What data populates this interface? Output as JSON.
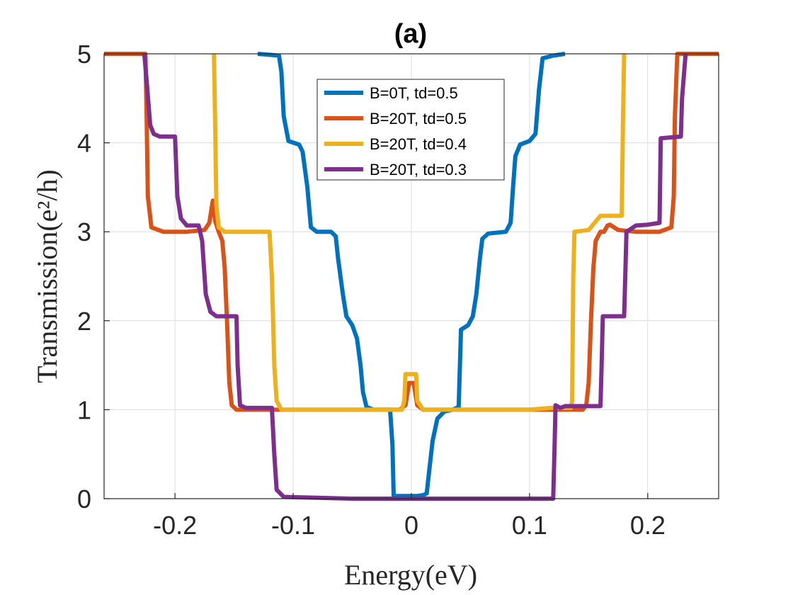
{
  "chart_data": {
    "type": "line",
    "title": "(a)",
    "xlabel": "Energy(eV)",
    "ylabel": "Transmission(e²/h)",
    "xlim": [
      -0.26,
      0.26
    ],
    "ylim": [
      0,
      5
    ],
    "xticks": [
      -0.2,
      -0.1,
      0,
      0.1,
      0.2
    ],
    "xtick_labels": [
      "-0.2",
      "-0.1",
      "0",
      "0.1",
      "0.2"
    ],
    "yticks": [
      0,
      1,
      2,
      3,
      4,
      5
    ],
    "ytick_labels": [
      "0",
      "1",
      "2",
      "3",
      "4",
      "5"
    ],
    "grid": true,
    "legend_position": "top-center",
    "series": [
      {
        "name": "B=0T, td=0.5",
        "color": "#0072BD",
        "points": [
          [
            -0.13,
            5.0
          ],
          [
            -0.112,
            4.98
          ],
          [
            -0.11,
            4.8
          ],
          [
            -0.108,
            4.3
          ],
          [
            -0.104,
            4.02
          ],
          [
            -0.095,
            3.98
          ],
          [
            -0.092,
            3.9
          ],
          [
            -0.088,
            3.5
          ],
          [
            -0.085,
            3.05
          ],
          [
            -0.08,
            3.0
          ],
          [
            -0.068,
            3.0
          ],
          [
            -0.064,
            2.95
          ],
          [
            -0.062,
            2.7
          ],
          [
            -0.058,
            2.3
          ],
          [
            -0.055,
            2.05
          ],
          [
            -0.05,
            1.95
          ],
          [
            -0.046,
            1.8
          ],
          [
            -0.043,
            1.5
          ],
          [
            -0.041,
            1.2
          ],
          [
            -0.038,
            1.03
          ],
          [
            -0.032,
            1.0
          ],
          [
            -0.018,
            1.0
          ],
          [
            -0.016,
            0.6
          ],
          [
            -0.015,
            0.03
          ],
          [
            -0.005,
            0.03
          ],
          [
            0.0,
            0.03
          ],
          [
            0.005,
            0.03
          ],
          [
            0.01,
            0.04
          ],
          [
            0.013,
            0.06
          ],
          [
            0.015,
            0.3
          ],
          [
            0.018,
            0.65
          ],
          [
            0.022,
            0.9
          ],
          [
            0.028,
            0.98
          ],
          [
            0.035,
            1.0
          ],
          [
            0.04,
            1.03
          ],
          [
            0.042,
            1.9
          ],
          [
            0.048,
            1.95
          ],
          [
            0.052,
            2.05
          ],
          [
            0.055,
            2.3
          ],
          [
            0.058,
            2.7
          ],
          [
            0.06,
            2.92
          ],
          [
            0.065,
            2.98
          ],
          [
            0.08,
            3.0
          ],
          [
            0.084,
            3.1
          ],
          [
            0.086,
            3.5
          ],
          [
            0.088,
            3.85
          ],
          [
            0.092,
            3.98
          ],
          [
            0.1,
            4.02
          ],
          [
            0.105,
            4.1
          ],
          [
            0.108,
            4.6
          ],
          [
            0.111,
            4.95
          ],
          [
            0.12,
            4.98
          ],
          [
            0.13,
            5.0
          ]
        ]
      },
      {
        "name": "B=20T, td=0.5",
        "color": "#D95319",
        "points": [
          [
            -0.26,
            5.0
          ],
          [
            -0.225,
            5.0
          ],
          [
            -0.224,
            4.3
          ],
          [
            -0.223,
            3.4
          ],
          [
            -0.22,
            3.05
          ],
          [
            -0.21,
            3.0
          ],
          [
            -0.19,
            3.0
          ],
          [
            -0.175,
            3.02
          ],
          [
            -0.171,
            3.1
          ],
          [
            -0.168,
            3.35
          ],
          [
            -0.166,
            3.12
          ],
          [
            -0.163,
            3.0
          ],
          [
            -0.16,
            2.9
          ],
          [
            -0.158,
            2.6
          ],
          [
            -0.156,
            2.0
          ],
          [
            -0.154,
            1.3
          ],
          [
            -0.152,
            1.05
          ],
          [
            -0.148,
            1.0
          ],
          [
            -0.13,
            1.0
          ],
          [
            -0.11,
            1.0
          ],
          [
            -0.05,
            1.0
          ],
          [
            -0.01,
            1.0
          ],
          [
            -0.005,
            1.05
          ],
          [
            -0.002,
            1.3
          ],
          [
            0.0,
            1.3
          ],
          [
            0.002,
            1.3
          ],
          [
            0.005,
            1.05
          ],
          [
            0.01,
            1.0
          ],
          [
            0.05,
            1.0
          ],
          [
            0.1,
            1.0
          ],
          [
            0.145,
            1.0
          ],
          [
            0.148,
            1.05
          ],
          [
            0.15,
            1.3
          ],
          [
            0.152,
            2.0
          ],
          [
            0.154,
            2.6
          ],
          [
            0.156,
            2.9
          ],
          [
            0.16,
            3.0
          ],
          [
            0.163,
            3.0
          ],
          [
            0.166,
            3.07
          ],
          [
            0.168,
            3.08
          ],
          [
            0.175,
            3.02
          ],
          [
            0.19,
            3.0
          ],
          [
            0.21,
            3.0
          ],
          [
            0.22,
            3.05
          ],
          [
            0.222,
            3.4
          ],
          [
            0.223,
            4.3
          ],
          [
            0.225,
            5.0
          ],
          [
            0.26,
            5.0
          ]
        ]
      },
      {
        "name": "B=20T, td=0.4",
        "color": "#EDB120",
        "points": [
          [
            -0.167,
            5.0
          ],
          [
            -0.166,
            4.2
          ],
          [
            -0.165,
            3.3
          ],
          [
            -0.163,
            3.05
          ],
          [
            -0.158,
            3.0
          ],
          [
            -0.12,
            3.0
          ],
          [
            -0.118,
            2.5
          ],
          [
            -0.116,
            1.5
          ],
          [
            -0.114,
            1.1
          ],
          [
            -0.11,
            1.0
          ],
          [
            -0.05,
            1.0
          ],
          [
            -0.008,
            1.0
          ],
          [
            -0.006,
            1.1
          ],
          [
            -0.005,
            1.4
          ],
          [
            0.002,
            1.4
          ],
          [
            0.004,
            1.4
          ],
          [
            0.005,
            1.1
          ],
          [
            0.01,
            1.0
          ],
          [
            0.05,
            1.0
          ],
          [
            0.1,
            1.0
          ],
          [
            0.118,
            1.02
          ],
          [
            0.135,
            1.02
          ],
          [
            0.136,
            1.1
          ],
          [
            0.137,
            2.5
          ],
          [
            0.138,
            3.0
          ],
          [
            0.15,
            3.02
          ],
          [
            0.155,
            3.1
          ],
          [
            0.16,
            3.18
          ],
          [
            0.178,
            3.18
          ],
          [
            0.179,
            4.2
          ],
          [
            0.18,
            5.0
          ]
        ]
      },
      {
        "name": "B=20T, td=0.3",
        "color": "#7E2F8E",
        "points": [
          [
            -0.226,
            5.0
          ],
          [
            -0.224,
            4.7
          ],
          [
            -0.221,
            4.2
          ],
          [
            -0.218,
            4.1
          ],
          [
            -0.213,
            4.07
          ],
          [
            -0.2,
            4.07
          ],
          [
            -0.198,
            3.4
          ],
          [
            -0.195,
            3.15
          ],
          [
            -0.19,
            3.07
          ],
          [
            -0.18,
            3.07
          ],
          [
            -0.177,
            2.9
          ],
          [
            -0.174,
            2.3
          ],
          [
            -0.17,
            2.1
          ],
          [
            -0.165,
            2.05
          ],
          [
            -0.148,
            2.05
          ],
          [
            -0.147,
            1.5
          ],
          [
            -0.145,
            1.05
          ],
          [
            -0.14,
            1.02
          ],
          [
            -0.118,
            1.02
          ],
          [
            -0.116,
            0.5
          ],
          [
            -0.114,
            0.1
          ],
          [
            -0.108,
            0.02
          ],
          [
            -0.05,
            0.0
          ],
          [
            0.0,
            0.0
          ],
          [
            0.05,
            0.0
          ],
          [
            0.1,
            0.0
          ],
          [
            0.12,
            0.0
          ],
          [
            0.121,
            0.5
          ],
          [
            0.122,
            1.05
          ],
          [
            0.126,
            1.02
          ],
          [
            0.13,
            1.04
          ],
          [
            0.16,
            1.04
          ],
          [
            0.161,
            1.5
          ],
          [
            0.162,
            2.05
          ],
          [
            0.18,
            2.05
          ],
          [
            0.181,
            2.5
          ],
          [
            0.182,
            3.0
          ],
          [
            0.19,
            3.07
          ],
          [
            0.2,
            3.08
          ],
          [
            0.21,
            3.1
          ],
          [
            0.211,
            4.05
          ],
          [
            0.228,
            4.07
          ],
          [
            0.229,
            4.5
          ],
          [
            0.232,
            5.0
          ]
        ]
      }
    ]
  }
}
